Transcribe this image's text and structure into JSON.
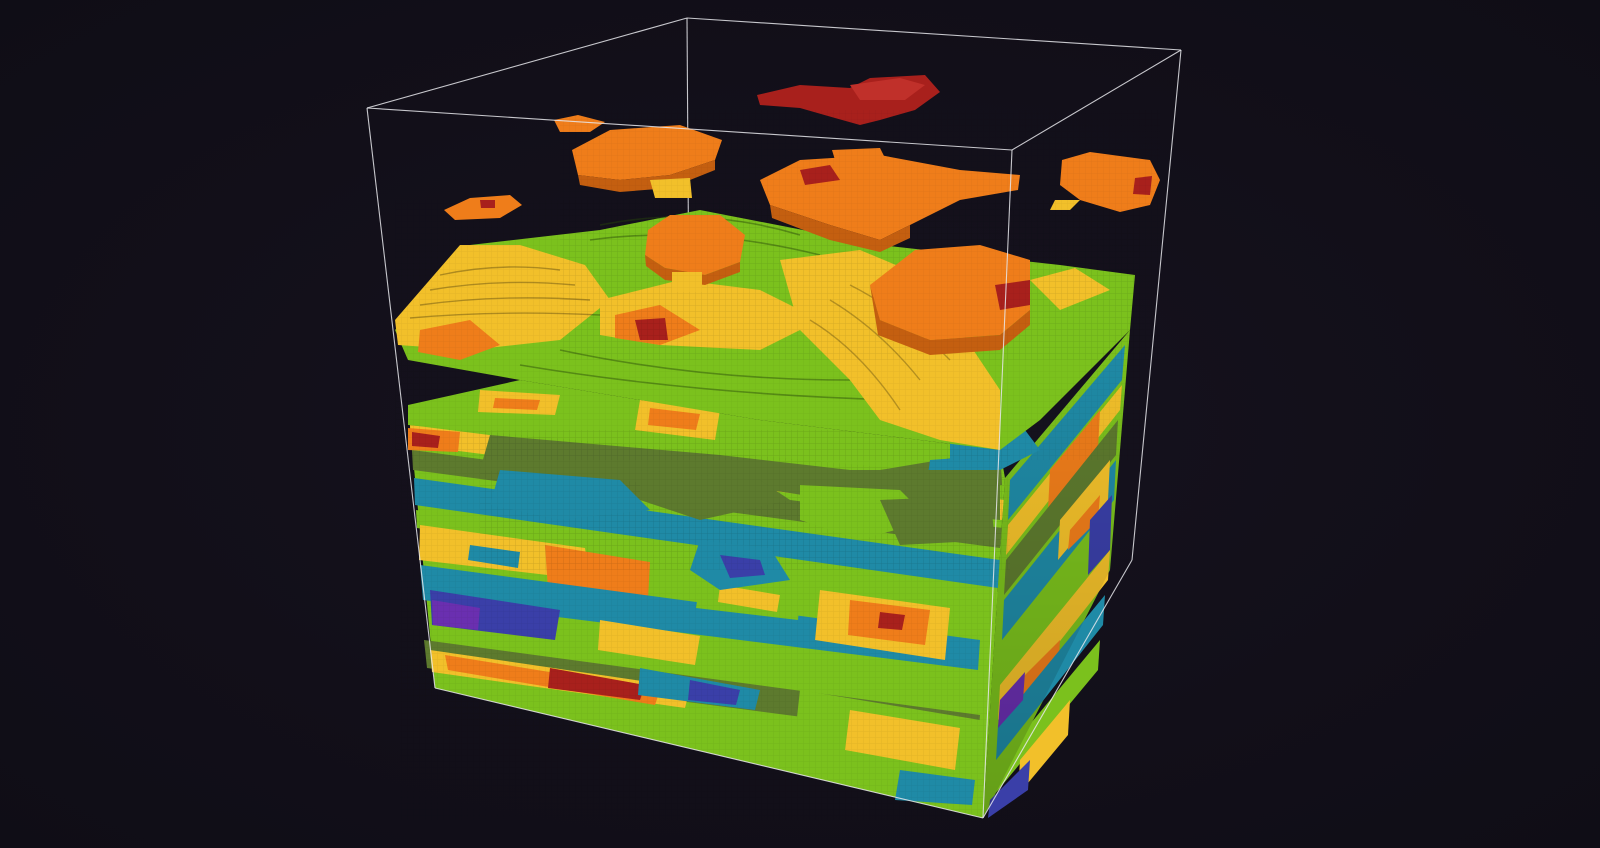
{
  "scene": {
    "description_visible_text": "",
    "colormap": [
      {
        "name": "level-0",
        "color": "#6a2fb0"
      },
      {
        "name": "level-1",
        "color": "#3a3fa8"
      },
      {
        "name": "level-2",
        "color": "#1f8aa6"
      },
      {
        "name": "level-3",
        "color": "#5d7a2e"
      },
      {
        "name": "level-4",
        "color": "#7bc11d"
      },
      {
        "name": "level-5",
        "color": "#f2c02a"
      },
      {
        "name": "level-6",
        "color": "#ef7d1a"
      },
      {
        "name": "level-7",
        "color": "#a8201c"
      }
    ],
    "background_color": "#121019",
    "bounding_box_color": "#e8e8ec"
  }
}
